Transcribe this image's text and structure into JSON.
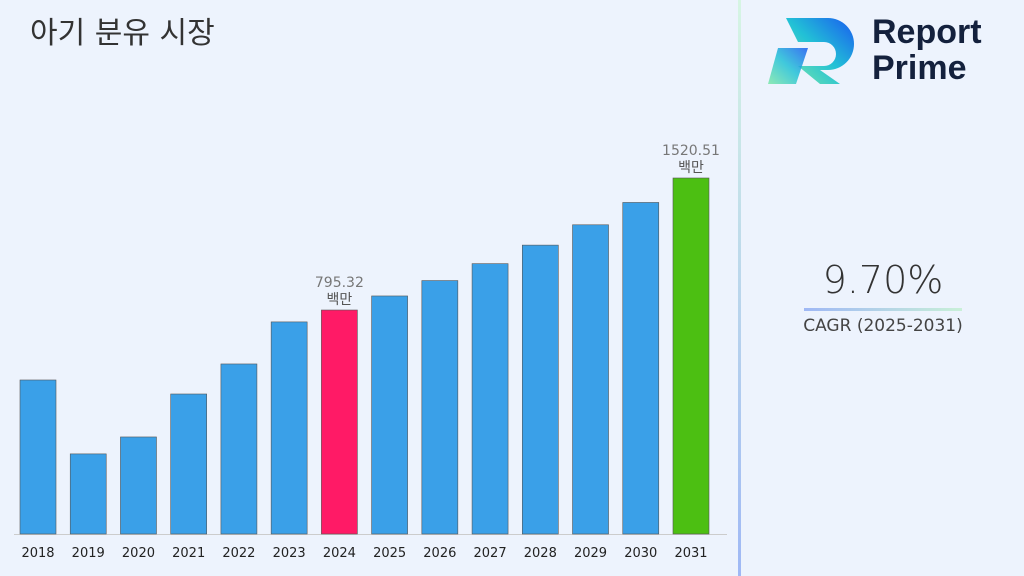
{
  "title": "아기 분유 시장",
  "logo": {
    "line1": "Report",
    "line2": "Prime"
  },
  "cagr": {
    "value": "9.70%",
    "label": "CAGR (2025-2031)"
  },
  "chart_data": {
    "type": "bar",
    "categories": [
      "2018",
      "2019",
      "2020",
      "2021",
      "2022",
      "2023",
      "2024",
      "2025",
      "2026",
      "2027",
      "2028",
      "2029",
      "2030",
      "2031"
    ],
    "values": [
      411,
      5,
      98,
      334,
      499,
      730,
      795.32,
      872.5,
      957.1,
      1050.0,
      1151.8,
      1263.5,
      1386.1,
      1520.51
    ],
    "colors": [
      "#3aa0e8",
      "#3aa0e8",
      "#3aa0e8",
      "#3aa0e8",
      "#3aa0e8",
      "#3aa0e8",
      "#ff1a66",
      "#3aa0e8",
      "#3aa0e8",
      "#3aa0e8",
      "#3aa0e8",
      "#3aa0e8",
      "#3aa0e8",
      "#4cbf12"
    ],
    "data_labels": [
      {
        "category": "2024",
        "value": "795.32",
        "unit": "백만"
      },
      {
        "category": "2031",
        "value": "1520.51",
        "unit": "백만"
      }
    ],
    "ylim": [
      -435,
      1620
    ],
    "grid": false,
    "legend": "none"
  }
}
